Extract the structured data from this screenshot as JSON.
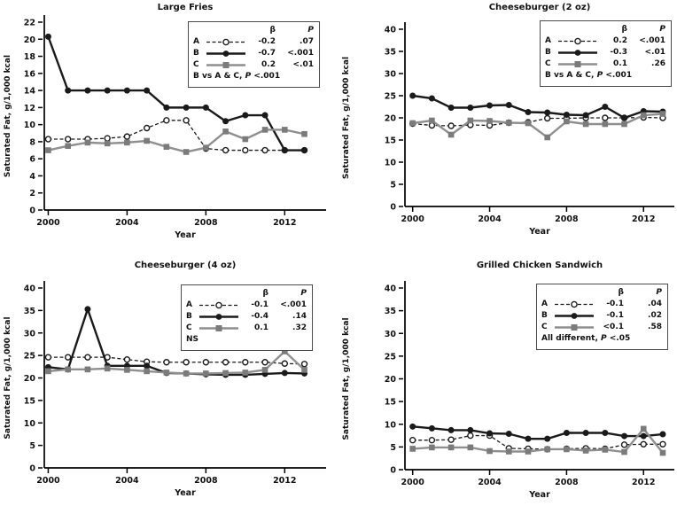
{
  "figure": {
    "ylabel": "Saturated Fat, g/1,000 kcal",
    "xlabel": "Year"
  },
  "colors": {
    "black": "#1a1a1a",
    "gray_line": "#8f8f8f",
    "gray_marker": "#7b7b7b",
    "axis": "#000000",
    "background": "#ffffff"
  },
  "chart_data": [
    {
      "type": "line",
      "title": "Large Fries",
      "xlabel": "Year",
      "ylabel": "Saturated Fat, g/1,000 kcal",
      "x": [
        2000,
        2001,
        2002,
        2003,
        2004,
        2005,
        2006,
        2007,
        2008,
        2009,
        2010,
        2011,
        2012,
        2013
      ],
      "xticks": [
        2000,
        2004,
        2008,
        2012
      ],
      "xlim": [
        1999.8,
        2014.1
      ],
      "ylim": [
        0,
        22
      ],
      "ytick_step": 2,
      "grid": false,
      "legend": {
        "position": "upper right",
        "beta_header": "β",
        "p_header": "P",
        "note": "B vs A & C, P <.001"
      },
      "series": [
        {
          "name": "A",
          "style": "dashed-open-circle",
          "color": "#1a1a1a",
          "marker_color": "#ffffff",
          "beta": "-0.2",
          "p": ".07",
          "values": [
            8.3,
            8.3,
            8.3,
            8.4,
            8.6,
            9.6,
            10.5,
            10.5,
            7.2,
            7.0,
            7.0,
            7.0,
            7.0,
            7.0
          ]
        },
        {
          "name": "B",
          "style": "solid-filled-circle",
          "color": "#1a1a1a",
          "marker_color": "#1a1a1a",
          "beta": "-0.7",
          "p": "<.001",
          "values": [
            20.3,
            14,
            14,
            14,
            14,
            14,
            12,
            12,
            12,
            10.4,
            11.1,
            11.1,
            7,
            7
          ]
        },
        {
          "name": "C",
          "style": "solid-filled-square",
          "color": "#8f8f8f",
          "marker_color": "#7b7b7b",
          "beta": "0.2",
          "p": "<.01",
          "values": [
            7.0,
            7.5,
            7.9,
            7.8,
            7.9,
            8.1,
            7.4,
            6.8,
            7.3,
            9.2,
            8.3,
            9.4,
            9.4,
            8.9
          ]
        }
      ]
    },
    {
      "type": "line",
      "title": "Cheeseburger (2 oz)",
      "xlabel": "Year",
      "ylabel": "Saturated Fat, g/1,000 kcal",
      "x": [
        2000,
        2001,
        2002,
        2003,
        2004,
        2005,
        2006,
        2007,
        2008,
        2009,
        2010,
        2011,
        2012,
        2013
      ],
      "xticks": [
        2000,
        2004,
        2008,
        2012
      ],
      "xlim": [
        1999.6,
        2013.6
      ],
      "ylim": [
        0,
        40
      ],
      "ytick_step": 5,
      "grid": false,
      "legend": {
        "position": "upper right",
        "beta_header": "β",
        "p_header": "P",
        "note": "B vs A & C, P <.001"
      },
      "series": [
        {
          "name": "A",
          "style": "dashed-open-circle",
          "color": "#1a1a1a",
          "marker_color": "#ffffff",
          "beta": "0.2",
          "p": "<.001",
          "values": [
            18.7,
            18.3,
            18.2,
            18.4,
            18.3,
            18.9,
            19.0,
            19.9,
            19.9,
            20.0,
            20.0,
            20.0,
            20.1,
            20.0
          ]
        },
        {
          "name": "B",
          "style": "solid-filled-circle",
          "color": "#1a1a1a",
          "marker_color": "#1a1a1a",
          "beta": "-0.3",
          "p": "<.01",
          "values": [
            25.0,
            24.4,
            22.3,
            22.3,
            22.8,
            22.9,
            21.3,
            21.2,
            20.7,
            20.6,
            22.5,
            20.0,
            21.5,
            21.4
          ]
        },
        {
          "name": "C",
          "style": "solid-filled-square",
          "color": "#8f8f8f",
          "marker_color": "#7b7b7b",
          "beta": "0.1",
          "p": ".26",
          "values": [
            18.8,
            19.4,
            16.2,
            19.4,
            19.3,
            18.9,
            18.8,
            15.6,
            19.2,
            18.6,
            18.6,
            18.6,
            20.6,
            20.9
          ]
        }
      ]
    },
    {
      "type": "line",
      "title": "Cheeseburger (4 oz)",
      "xlabel": "Year",
      "ylabel": "Saturated Fat, g/1,000 kcal",
      "x": [
        2000,
        2001,
        2002,
        2003,
        2004,
        2005,
        2006,
        2007,
        2008,
        2009,
        2010,
        2011,
        2012,
        2013
      ],
      "xticks": [
        2000,
        2004,
        2008,
        2012
      ],
      "xlim": [
        1999.8,
        2014.1
      ],
      "ylim": [
        0,
        40
      ],
      "ytick_step": 5,
      "grid": false,
      "legend": {
        "position": "upper right",
        "beta_header": "β",
        "p_header": "P",
        "note": "NS"
      },
      "series": [
        {
          "name": "A",
          "style": "dashed-open-circle",
          "color": "#1a1a1a",
          "marker_color": "#ffffff",
          "beta": "-0.1",
          "p": "<.001",
          "values": [
            24.6,
            24.6,
            24.6,
            24.6,
            24.1,
            23.6,
            23.5,
            23.5,
            23.5,
            23.5,
            23.5,
            23.5,
            23.2,
            23.1
          ]
        },
        {
          "name": "B",
          "style": "solid-filled-circle",
          "color": "#1a1a1a",
          "marker_color": "#1a1a1a",
          "beta": "-0.4",
          "p": ".14",
          "values": [
            22.4,
            21.9,
            35.3,
            22.7,
            22.7,
            22.7,
            21.1,
            21.0,
            20.8,
            20.7,
            20.7,
            20.9,
            21.1,
            21.0
          ]
        },
        {
          "name": "C",
          "style": "solid-filled-square",
          "color": "#8f8f8f",
          "marker_color": "#7b7b7b",
          "beta": "0.1",
          "p": ".32",
          "values": [
            21.5,
            21.9,
            21.9,
            22.1,
            21.8,
            21.5,
            21.2,
            21.0,
            21.0,
            21.1,
            21.2,
            21.8,
            25.9,
            21.8
          ]
        }
      ]
    },
    {
      "type": "line",
      "title": "Grilled Chicken Sandwich",
      "xlabel": "Year",
      "ylabel": "Saturated Fat, g/1,000 kcal",
      "x": [
        2000,
        2001,
        2002,
        2003,
        2004,
        2005,
        2006,
        2007,
        2008,
        2009,
        2010,
        2011,
        2012,
        2013
      ],
      "xticks": [
        2000,
        2004,
        2008,
        2012
      ],
      "xlim": [
        1999.6,
        2013.6
      ],
      "ylim": [
        0,
        40
      ],
      "ytick_step": 5,
      "grid": false,
      "legend": {
        "position": "upper right",
        "beta_header": "β",
        "p_header": "P",
        "note": "All different, P <.05"
      },
      "series": [
        {
          "name": "A",
          "style": "dashed-open-circle",
          "color": "#1a1a1a",
          "marker_color": "#ffffff",
          "beta": "-0.1",
          "p": ".04",
          "values": [
            6.5,
            6.5,
            6.6,
            7.5,
            7.5,
            4.7,
            4.6,
            4.5,
            4.6,
            4.7,
            4.6,
            5.5,
            5.6,
            5.6
          ]
        },
        {
          "name": "B",
          "style": "solid-filled-circle",
          "color": "#1a1a1a",
          "marker_color": "#1a1a1a",
          "beta": "-0.1",
          "p": ".02",
          "values": [
            9.5,
            9.1,
            8.7,
            8.7,
            8.0,
            7.9,
            6.8,
            6.8,
            8.1,
            8.1,
            8.1,
            7.4,
            7.4,
            7.8
          ]
        },
        {
          "name": "C",
          "style": "solid-filled-square",
          "color": "#8f8f8f",
          "marker_color": "#7b7b7b",
          "beta": "<0.1",
          "p": ".58",
          "values": [
            4.6,
            4.9,
            4.9,
            4.9,
            4.1,
            4.0,
            4.0,
            4.5,
            4.5,
            4.2,
            4.4,
            3.9,
            9.0,
            3.7
          ]
        }
      ]
    }
  ]
}
